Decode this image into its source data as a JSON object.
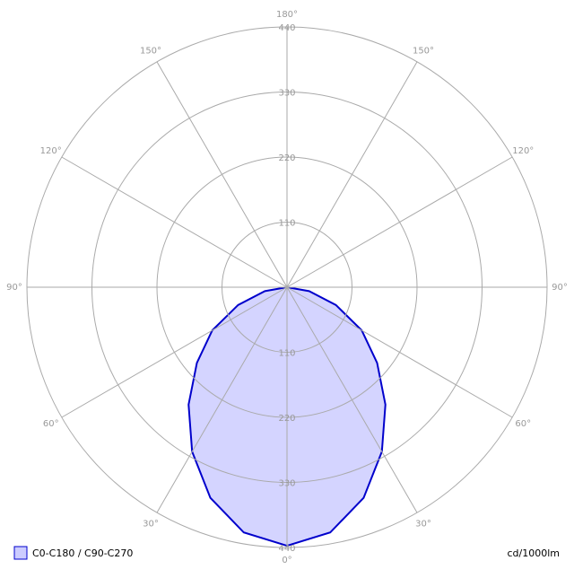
{
  "chart_data": {
    "type": "polar",
    "angles": [
      0,
      10,
      20,
      30,
      40,
      50,
      60,
      70,
      80,
      90
    ],
    "series": [
      {
        "name": "C0-C180 / C90-C270",
        "color": "#0000cc",
        "fill": "#ccccff",
        "values": [
          437,
          421,
          379,
          321,
          259,
          199,
          146,
          88,
          38,
          0
        ]
      }
    ],
    "rlim": [
      0,
      440
    ],
    "rticks": [
      110,
      220,
      330,
      440
    ],
    "angle_ticks": [
      {
        "value": 0,
        "label": "0°"
      },
      {
        "value": 30,
        "label": "30°"
      },
      {
        "value": 60,
        "label": "60°"
      },
      {
        "value": 90,
        "label": "90°"
      },
      {
        "value": 120,
        "label": "120°"
      },
      {
        "value": 150,
        "label": "150°"
      },
      {
        "value": 180,
        "label": "180°"
      }
    ],
    "unit": "cd/1000lm",
    "grid": true
  }
}
